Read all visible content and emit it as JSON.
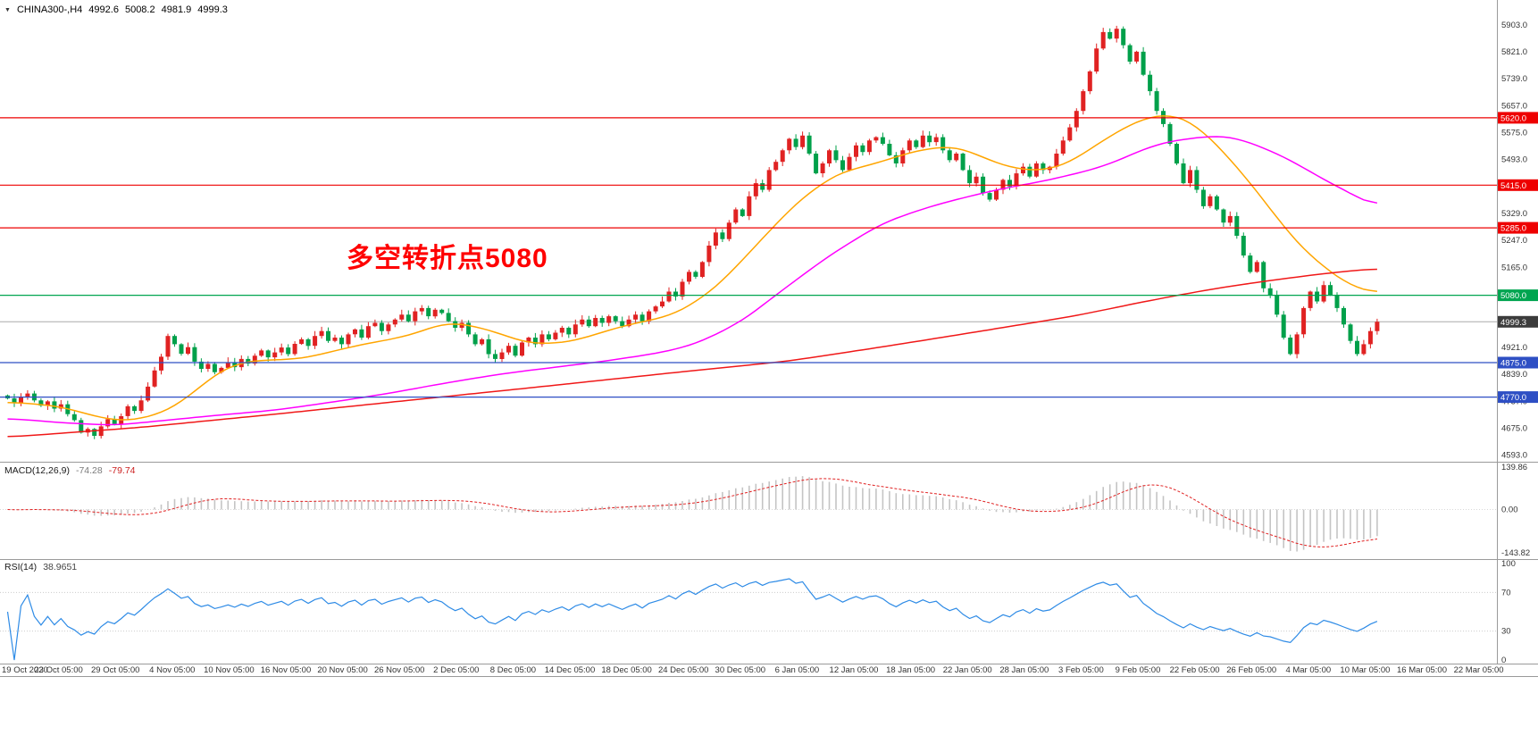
{
  "header": {
    "collapse_icon": "▼",
    "symbol_period": "CHINA300-,H4",
    "open": "4992.6",
    "high": "5008.2",
    "low": "4981.9",
    "close": "4999.3"
  },
  "annotation": {
    "text": "多空转折点5080",
    "color": "#FF0000"
  },
  "chart_data": {
    "type": "candlestick",
    "symbol": "CHINA300-",
    "timeframe": "H4",
    "title": "CHINA300-,H4 4992.6 5008.2 4981.9 4999.3",
    "ylim": [
      4593,
      5903
    ],
    "first_open": 4775,
    "closes": [
      4766,
      4752,
      4770,
      4781,
      4760,
      4744,
      4757,
      4735,
      4748,
      4718,
      4700,
      4662,
      4673,
      4652,
      4681,
      4703,
      4688,
      4712,
      4742,
      4728,
      4760,
      4802,
      4851,
      4893,
      4956,
      4931,
      4902,
      4922,
      4878,
      4856,
      4871,
      4846,
      4859,
      4876,
      4861,
      4886,
      4872,
      4896,
      4912,
      4891,
      4906,
      4921,
      4901,
      4932,
      4946,
      4926,
      4956,
      4971,
      4941,
      4951,
      4931,
      4961,
      4976,
      4951,
      4986,
      4996,
      4971,
      4991,
      5006,
      5021,
      5001,
      5031,
      5041,
      5016,
      5036,
      5026,
      5001,
      4981,
      4996,
      4961,
      4931,
      4946,
      4901,
      4886,
      4906,
      4926,
      4896,
      4936,
      4951,
      4931,
      4961,
      4946,
      4966,
      4981,
      4961,
      4991,
      5006,
      4986,
      5011,
      4996,
      5016,
      5001,
      4986,
      5006,
      5021,
      5001,
      5031,
      5046,
      5061,
      5091,
      5076,
      5121,
      5151,
      5136,
      5181,
      5231,
      5271,
      5251,
      5301,
      5341,
      5321,
      5381,
      5421,
      5401,
      5461,
      5486,
      5521,
      5556,
      5531,
      5566,
      5511,
      5451,
      5481,
      5521,
      5491,
      5461,
      5501,
      5536,
      5516,
      5551,
      5561,
      5541,
      5506,
      5481,
      5521,
      5551,
      5531,
      5566,
      5546,
      5561,
      5521,
      5491,
      5511,
      5461,
      5421,
      5441,
      5391,
      5371,
      5401,
      5431,
      5411,
      5451,
      5471,
      5441,
      5481,
      5461,
      5471,
      5511,
      5551,
      5591,
      5641,
      5701,
      5761,
      5831,
      5881,
      5861,
      5891,
      5841,
      5791,
      5821,
      5751,
      5701,
      5641,
      5601,
      5541,
      5481,
      5421,
      5461,
      5401,
      5351,
      5381,
      5341,
      5301,
      5321,
      5261,
      5201,
      5151,
      5181,
      5101,
      5081,
      5021,
      4951,
      4901,
      4961,
      5041,
      5091,
      5061,
      5111,
      5081,
      5041,
      4991,
      4941,
      4901,
      4931,
      4971,
      4999.3
    ],
    "y_ticks": [
      5903,
      5821,
      5739,
      5657,
      5575,
      5493,
      5411,
      5329,
      5247,
      5165,
      5083,
      5001,
      4921,
      4839,
      4757,
      4675,
      4593
    ],
    "levels": [
      {
        "value": 5620,
        "color": "red"
      },
      {
        "value": 5415,
        "color": "red"
      },
      {
        "value": 5285,
        "color": "red"
      },
      {
        "value": 5080,
        "color": "green"
      },
      {
        "value": 4875,
        "color": "blue"
      },
      {
        "value": 4770,
        "color": "blue"
      }
    ],
    "current_price": 4999.3,
    "moving_averages": [
      {
        "name": "fast",
        "color": "#FFA500",
        "anchors": [
          [
            0,
            4756
          ],
          [
            8,
            4742
          ],
          [
            14,
            4706
          ],
          [
            18,
            4695
          ],
          [
            24,
            4726
          ],
          [
            28,
            4786
          ],
          [
            32,
            4856
          ],
          [
            36,
            4881
          ],
          [
            44,
            4886
          ],
          [
            52,
            4926
          ],
          [
            60,
            4956
          ],
          [
            66,
            5001
          ],
          [
            72,
            4976
          ],
          [
            78,
            4931
          ],
          [
            84,
            4936
          ],
          [
            92,
            4986
          ],
          [
            100,
            5021
          ],
          [
            106,
            5101
          ],
          [
            112,
            5231
          ],
          [
            118,
            5361
          ],
          [
            124,
            5451
          ],
          [
            130,
            5481
          ],
          [
            136,
            5521
          ],
          [
            142,
            5536
          ],
          [
            148,
            5481
          ],
          [
            153,
            5456
          ],
          [
            158,
            5471
          ],
          [
            164,
            5551
          ],
          [
            168,
            5601
          ],
          [
            172,
            5631
          ],
          [
            176,
            5626
          ],
          [
            180,
            5561
          ],
          [
            184,
            5471
          ],
          [
            188,
            5371
          ],
          [
            192,
            5261
          ],
          [
            196,
            5181
          ],
          [
            200,
            5121
          ],
          [
            203,
            5091
          ],
          [
            205,
            5086
          ]
        ]
      },
      {
        "name": "medium",
        "color": "#FF00FF",
        "anchors": [
          [
            0,
            4706
          ],
          [
            8,
            4692
          ],
          [
            16,
            4684
          ],
          [
            24,
            4700
          ],
          [
            32,
            4716
          ],
          [
            40,
            4730
          ],
          [
            49,
            4756
          ],
          [
            57,
            4781
          ],
          [
            65,
            4811
          ],
          [
            74,
            4841
          ],
          [
            82,
            4861
          ],
          [
            90,
            4881
          ],
          [
            98,
            4906
          ],
          [
            103,
            4931
          ],
          [
            110,
            5001
          ],
          [
            115,
            5081
          ],
          [
            119,
            5141
          ],
          [
            123,
            5201
          ],
          [
            131,
            5301
          ],
          [
            139,
            5356
          ],
          [
            148,
            5401
          ],
          [
            156,
            5431
          ],
          [
            164,
            5471
          ],
          [
            172,
            5541
          ],
          [
            178,
            5561
          ],
          [
            183,
            5566
          ],
          [
            189,
            5521
          ],
          [
            193,
            5481
          ],
          [
            197,
            5431
          ],
          [
            202,
            5381
          ],
          [
            205,
            5341
          ]
        ]
      },
      {
        "name": "slow",
        "color": "#F01818",
        "anchors": [
          [
            0,
            4648
          ],
          [
            20,
            4678
          ],
          [
            40,
            4718
          ],
          [
            60,
            4760
          ],
          [
            80,
            4802
          ],
          [
            100,
            4845
          ],
          [
            117,
            4880
          ],
          [
            130,
            4920
          ],
          [
            140,
            4952
          ],
          [
            150,
            4985
          ],
          [
            160,
            5018
          ],
          [
            170,
            5060
          ],
          [
            180,
            5098
          ],
          [
            190,
            5128
          ],
          [
            198,
            5148
          ],
          [
            205,
            5162
          ]
        ]
      }
    ],
    "macd": {
      "label": "MACD(12,26,9)",
      "main_value": "-74.28",
      "signal_value": "-79.74",
      "fast": 12,
      "slow": 26,
      "signal": 9,
      "y_ticks": [
        "139.86",
        "0.00",
        "-143.82"
      ]
    },
    "rsi": {
      "label": "RSI(14)",
      "value": "38.9651",
      "period": 14,
      "y_ticks": [
        "100",
        "70",
        "30",
        "0"
      ],
      "levels": [
        70,
        30
      ]
    },
    "x_labels": [
      "19 Oct 2020",
      "23 Oct 05:00",
      "29 Oct 05:00",
      "4 Nov 05:00",
      "10 Nov 05:00",
      "16 Nov 05:00",
      "20 Nov 05:00",
      "26 Nov 05:00",
      "2 Dec 05:00",
      "8 Dec 05:00",
      "14 Dec 05:00",
      "18 Dec 05:00",
      "24 Dec 05:00",
      "30 Dec 05:00",
      "6 Jan 05:00",
      "12 Jan 05:00",
      "18 Jan 05:00",
      "22 Jan 05:00",
      "28 Jan 05:00",
      "3 Feb 05:00",
      "9 Feb 05:00",
      "22 Feb 05:00",
      "26 Feb 05:00",
      "4 Mar 05:00",
      "10 Mar 05:00",
      "16 Mar 05:00",
      "22 Mar 05:00"
    ],
    "colors": {
      "up": "#E02222",
      "down": "#00A04A",
      "level_red": "#EE0000",
      "level_green": "#00A550",
      "level_blue": "#2E4FC4",
      "current_badge": "#3C3C3C",
      "macd_hist": "#C4C4C4",
      "macd_signal": "#E02020",
      "rsi_line": "#2E8BE6",
      "axis_text": "#333333"
    }
  }
}
